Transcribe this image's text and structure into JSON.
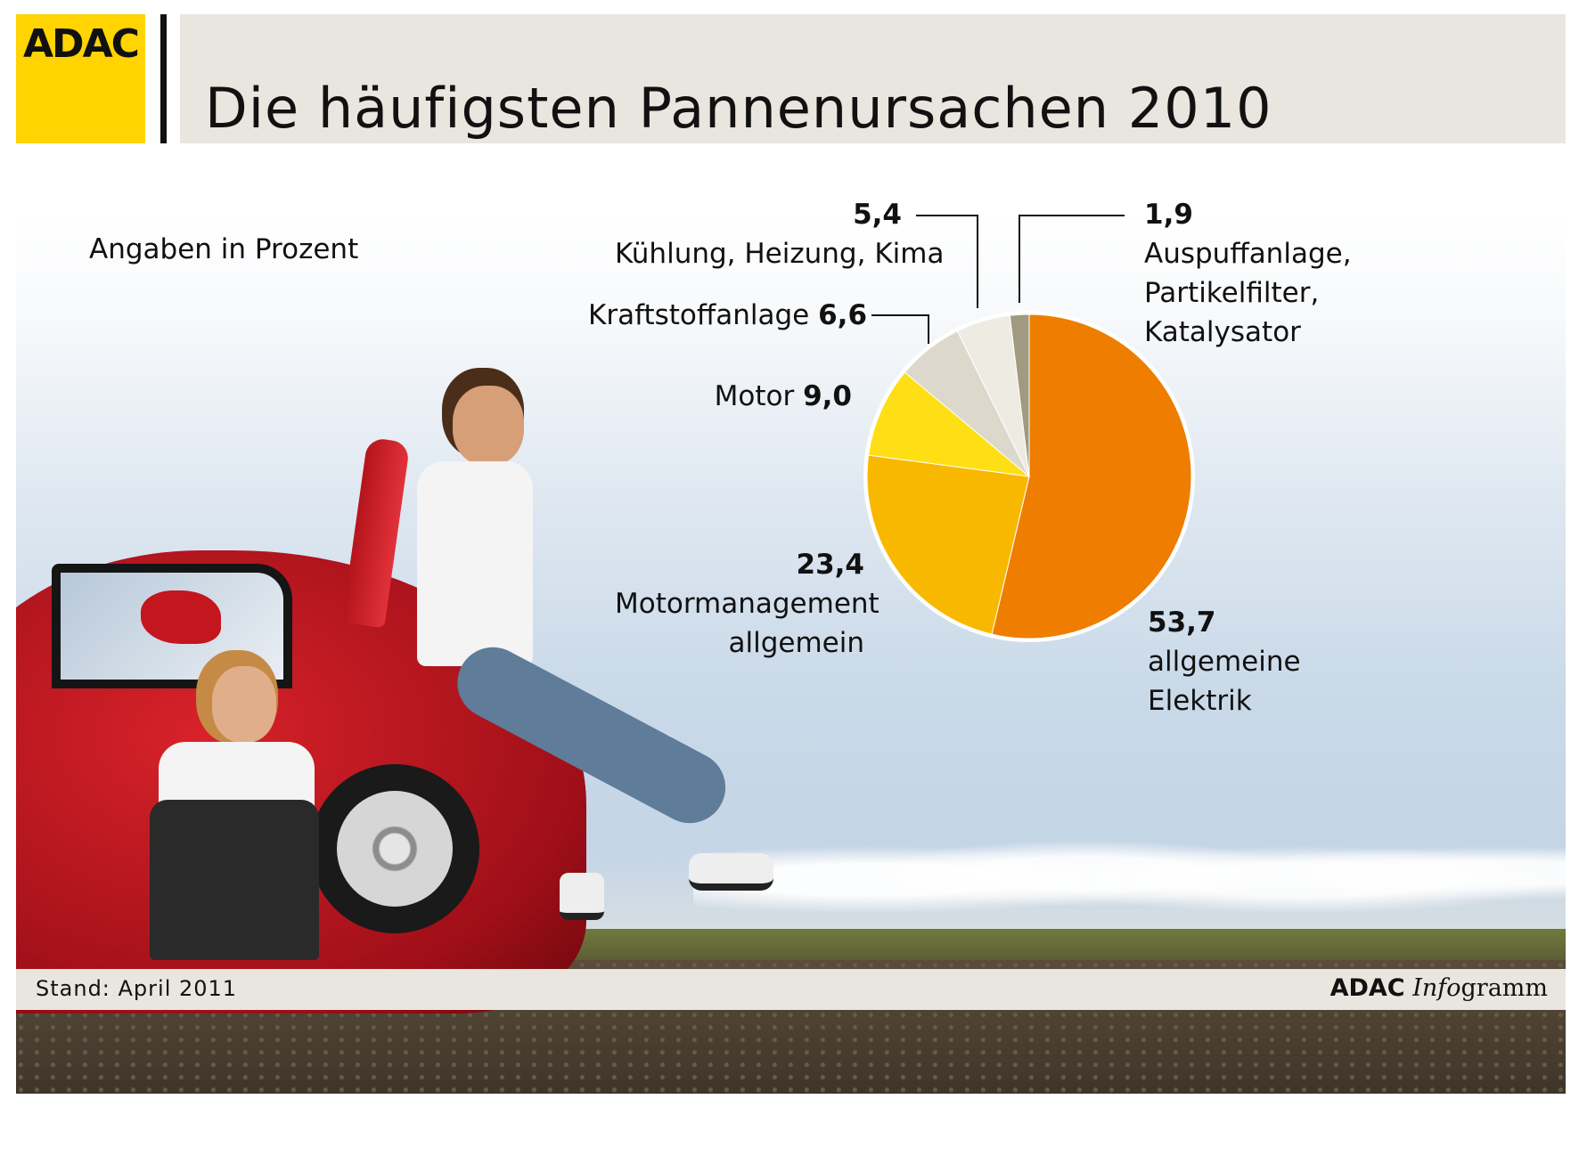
{
  "header": {
    "logo_text": "ADAC",
    "title": "Die häufigsten Pannenursachen 2010"
  },
  "note": "Angaben in Prozent",
  "colors": {
    "logo_yellow": "#ffd400",
    "header_band": "#e9e6df"
  },
  "chart_data": {
    "type": "pie",
    "title": "Die häufigsten Pannenursachen 2010",
    "unit_note": "Angaben in Prozent",
    "slices": [
      {
        "label": "allgemeine Elektrik",
        "value": 53.7,
        "value_text": "53,7",
        "color": "#ee7d00"
      },
      {
        "label": "Motormanagement allgemein",
        "value": 23.4,
        "value_text": "23,4",
        "color": "#f9b800"
      },
      {
        "label": "Motor",
        "value": 9.0,
        "value_text": "9,0",
        "color": "#fedf15"
      },
      {
        "label": "Kraftstoffanlage",
        "value": 6.6,
        "value_text": "6,6",
        "color": "#dcd8cc"
      },
      {
        "label": "Kühlung, Heizung, Kima",
        "value": 5.4,
        "value_text": "5,4",
        "color": "#eeebe3"
      },
      {
        "label": "Auspuffanlage, Partikelfilter, Katalysator",
        "value": 1.9,
        "value_text": "1,9",
        "color": "#a09a80"
      }
    ]
  },
  "labels": {
    "elektrik": {
      "value": "53,7",
      "line1": "allgemeine",
      "line2": "Elektrik"
    },
    "motormanagement": {
      "value": "23,4",
      "line1": "Motormanagement",
      "line2": "allgemein"
    },
    "motor": {
      "text": "Motor ",
      "value": "9,0"
    },
    "kraftstoff": {
      "text": "Kraftstoffanlage ",
      "value": "6,6"
    },
    "kuehlung": {
      "value": "5,4",
      "line1": "Kühlung, Heizung, Kima"
    },
    "auspuff": {
      "value": "1,9",
      "line1": "Auspuffanlage,",
      "line2": "Partikelfilter,",
      "line3": "Katalysator"
    }
  },
  "footer": {
    "stand": "Stand: April 2011",
    "brand": "ADAC",
    "info": "Info",
    "gramm": "gramm"
  }
}
